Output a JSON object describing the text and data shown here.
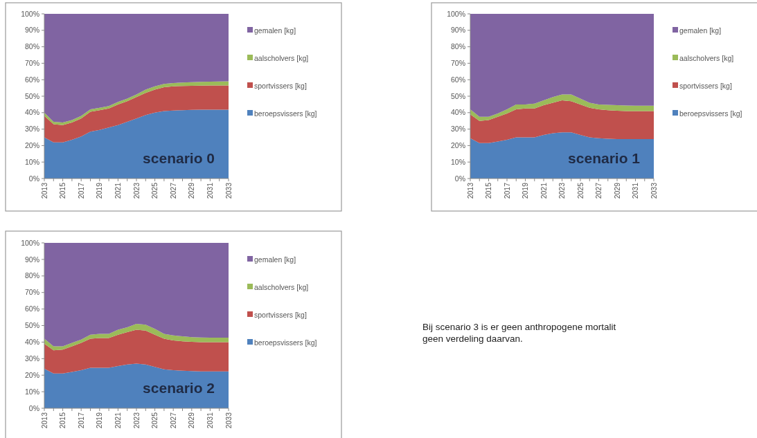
{
  "chart_data": [
    {
      "type": "area",
      "stacked": true,
      "title": "scenario 0",
      "x": [
        2013,
        2014,
        2015,
        2016,
        2017,
        2018,
        2019,
        2020,
        2021,
        2022,
        2023,
        2024,
        2025,
        2026,
        2027,
        2028,
        2029,
        2030,
        2031,
        2032,
        2033
      ],
      "xlim": [
        2013,
        2033
      ],
      "xticks": [
        2013,
        {
          "value": 2014,
          "label": null
        },
        2015,
        {
          "value": 2016,
          "label": null
        },
        2017,
        {
          "value": 2018,
          "label": null
        },
        2019,
        {
          "value": 2020,
          "label": null
        },
        2021,
        {
          "value": 2022,
          "label": null
        },
        2023,
        {
          "value": 2024,
          "label": null
        },
        2025,
        {
          "value": 2026,
          "label": null
        },
        2027,
        {
          "value": 2028,
          "label": null
        },
        2029,
        {
          "value": 2030,
          "label": null
        },
        2031,
        {
          "value": 2032,
          "label": null
        },
        2033
      ],
      "ylim": [
        0,
        100
      ],
      "yticks": [
        {
          "value": 0,
          "label": "0%"
        },
        {
          "value": 10,
          "label": "10%"
        },
        {
          "value": 20,
          "label": "20%"
        },
        {
          "value": 30,
          "label": "30%"
        },
        {
          "value": 40,
          "label": "40%"
        },
        {
          "value": 50,
          "label": "50%"
        },
        {
          "value": 60,
          "label": "60%"
        },
        {
          "value": 70,
          "label": "70%"
        },
        {
          "value": 80,
          "label": "80%"
        },
        {
          "value": 90,
          "label": "90%"
        },
        {
          "value": 100,
          "label": "100%"
        }
      ],
      "grid": false,
      "legend": "right",
      "series": [
        {
          "name": "beroepsvissers [kg]",
          "color": "#4f81bd",
          "values": [
            25,
            22,
            22,
            23.5,
            25.5,
            28.5,
            29.5,
            31,
            32.5,
            34.5,
            36.5,
            38.5,
            40,
            41,
            41.3,
            41.5,
            41.7,
            41.8,
            41.8,
            41.8,
            41.8
          ]
        },
        {
          "name": "sportvissers [kg]",
          "color": "#c0504d",
          "values": [
            13,
            11,
            10.5,
            10.5,
            11,
            12,
            12,
            11.5,
            12.5,
            12.5,
            13,
            13.5,
            14,
            14.5,
            14.7,
            14.7,
            14.6,
            14.6,
            14.7,
            14.7,
            14.7
          ]
        },
        {
          "name": "aalscholvers [kg]",
          "color": "#9bbb59",
          "values": [
            2,
            1.5,
            1.5,
            1.5,
            1.5,
            1.5,
            1.5,
            1.5,
            1.5,
            1.5,
            1.5,
            2,
            2,
            2,
            2,
            2.1,
            2.2,
            2.3,
            2.3,
            2.4,
            2.5
          ]
        },
        {
          "name": "gemalen [kg]",
          "color": "#8064a2",
          "values": [
            60,
            65.5,
            66,
            64.5,
            62,
            58,
            57,
            56,
            53.5,
            51.5,
            49,
            46,
            44,
            42.5,
            42,
            41.7,
            41.5,
            41.3,
            41.2,
            41.1,
            41
          ]
        }
      ]
    },
    {
      "type": "area",
      "stacked": true,
      "title": "scenario 1",
      "x": [
        2013,
        2014,
        2015,
        2016,
        2017,
        2018,
        2019,
        2020,
        2021,
        2022,
        2023,
        2024,
        2025,
        2026,
        2027,
        2028,
        2029,
        2030,
        2031,
        2032,
        2033
      ],
      "xlim": [
        2013,
        2033
      ],
      "xticks": [
        2013,
        {
          "value": 2014,
          "label": null
        },
        2015,
        {
          "value": 2016,
          "label": null
        },
        2017,
        {
          "value": 2018,
          "label": null
        },
        2019,
        {
          "value": 2020,
          "label": null
        },
        2021,
        {
          "value": 2022,
          "label": null
        },
        2023,
        {
          "value": 2024,
          "label": null
        },
        2025,
        {
          "value": 2026,
          "label": null
        },
        2027,
        {
          "value": 2028,
          "label": null
        },
        2029,
        {
          "value": 2030,
          "label": null
        },
        2031,
        {
          "value": 2032,
          "label": null
        },
        2033
      ],
      "ylim": [
        0,
        100
      ],
      "yticks": [
        {
          "value": 0,
          "label": "0%"
        },
        {
          "value": 10,
          "label": "10%"
        },
        {
          "value": 20,
          "label": "20%"
        },
        {
          "value": 30,
          "label": "30%"
        },
        {
          "value": 40,
          "label": "40%"
        },
        {
          "value": 50,
          "label": "50%"
        },
        {
          "value": 60,
          "label": "60%"
        },
        {
          "value": 70,
          "label": "70%"
        },
        {
          "value": 80,
          "label": "80%"
        },
        {
          "value": 90,
          "label": "90%"
        },
        {
          "value": 100,
          "label": "100%"
        }
      ],
      "grid": false,
      "legend": "right",
      "series": [
        {
          "name": "beroepsvissers [kg]",
          "color": "#4f81bd",
          "values": [
            24.5,
            21.5,
            21.5,
            22.5,
            23.5,
            25,
            25,
            25,
            26.5,
            27.5,
            28,
            28,
            26.5,
            25,
            24.5,
            24.2,
            24,
            24,
            24,
            24,
            24
          ]
        },
        {
          "name": "sportvissers [kg]",
          "color": "#c0504d",
          "values": [
            14.5,
            13.5,
            14,
            15,
            16,
            17,
            17.5,
            17.5,
            18,
            18.5,
            19.5,
            19,
            18.5,
            18,
            17.5,
            17.3,
            17.2,
            17,
            17,
            17,
            17
          ]
        },
        {
          "name": "aalscholvers [kg]",
          "color": "#9bbb59",
          "values": [
            3,
            2.5,
            2,
            2,
            2.5,
            3,
            2.5,
            3,
            3,
            3.5,
            3.5,
            4,
            3.5,
            3,
            3,
            3.2,
            3.3,
            3.3,
            3.2,
            3.2,
            3.2
          ]
        },
        {
          "name": "gemalen [kg]",
          "color": "#8064a2",
          "values": [
            58,
            62.5,
            62.5,
            60.5,
            58,
            55,
            55,
            54.5,
            52.5,
            50.5,
            49,
            49,
            51.5,
            54,
            55,
            55.3,
            55.5,
            55.7,
            55.8,
            55.8,
            55.8
          ]
        }
      ]
    },
    {
      "type": "area",
      "stacked": true,
      "title": "scenario 2",
      "x": [
        2013,
        2014,
        2015,
        2016,
        2017,
        2018,
        2019,
        2020,
        2021,
        2022,
        2023,
        2024,
        2025,
        2026,
        2027,
        2028,
        2029,
        2030,
        2031,
        2032,
        2033
      ],
      "xlim": [
        2013,
        2033
      ],
      "xticks": [
        2013,
        {
          "value": 2014,
          "label": null
        },
        2015,
        {
          "value": 2016,
          "label": null
        },
        2017,
        {
          "value": 2018,
          "label": null
        },
        2019,
        {
          "value": 2020,
          "label": null
        },
        2021,
        {
          "value": 2022,
          "label": null
        },
        2023,
        {
          "value": 2024,
          "label": null
        },
        2025,
        {
          "value": 2026,
          "label": null
        },
        2027,
        {
          "value": 2028,
          "label": null
        },
        2029,
        {
          "value": 2030,
          "label": null
        },
        2031,
        {
          "value": 2032,
          "label": null
        },
        2033
      ],
      "ylim": [
        0,
        100
      ],
      "yticks": [
        {
          "value": 0,
          "label": "0%"
        },
        {
          "value": 10,
          "label": "10%"
        },
        {
          "value": 20,
          "label": "20%"
        },
        {
          "value": 30,
          "label": "30%"
        },
        {
          "value": 40,
          "label": "40%"
        },
        {
          "value": 50,
          "label": "50%"
        },
        {
          "value": 60,
          "label": "60%"
        },
        {
          "value": 70,
          "label": "70%"
        },
        {
          "value": 80,
          "label": "80%"
        },
        {
          "value": 90,
          "label": "90%"
        },
        {
          "value": 100,
          "label": "100%"
        }
      ],
      "grid": false,
      "legend": "right",
      "series": [
        {
          "name": "beroepsvissers [kg]",
          "color": "#4f81bd",
          "values": [
            24,
            21,
            21,
            22,
            23,
            24.5,
            24.5,
            24.5,
            25.5,
            26.5,
            27,
            26.5,
            25,
            23.5,
            23,
            22.7,
            22.5,
            22.3,
            22.3,
            22.3,
            22.3
          ]
        },
        {
          "name": "sportvissers [kg]",
          "color": "#c0504d",
          "values": [
            15,
            14,
            14.5,
            15.5,
            16.5,
            17.5,
            18,
            18,
            19,
            19.5,
            20.5,
            20.5,
            19.5,
            18.5,
            18,
            17.8,
            17.7,
            17.7,
            17.7,
            17.7,
            17.7
          ]
        },
        {
          "name": "aalscholvers [kg]",
          "color": "#9bbb59",
          "values": [
            3,
            2.5,
            2,
            2,
            2,
            2.5,
            2.5,
            2.5,
            3,
            3,
            3.5,
            3.5,
            3.5,
            3,
            3,
            3,
            2.8,
            2.8,
            2.7,
            2.7,
            2.7
          ]
        },
        {
          "name": "gemalen [kg]",
          "color": "#8064a2",
          "values": [
            58,
            62.5,
            62.5,
            60.5,
            58.5,
            55.5,
            55,
            55,
            52.5,
            51,
            49,
            49.5,
            52,
            55,
            56,
            56.5,
            57,
            57.2,
            57.3,
            57.3,
            57.3
          ]
        }
      ]
    },
    {
      "type": "other",
      "annotations": [
        "Bij scenario 3 is er geen anthropogene mortalit",
        "geen verdeling daarvan."
      ]
    }
  ]
}
